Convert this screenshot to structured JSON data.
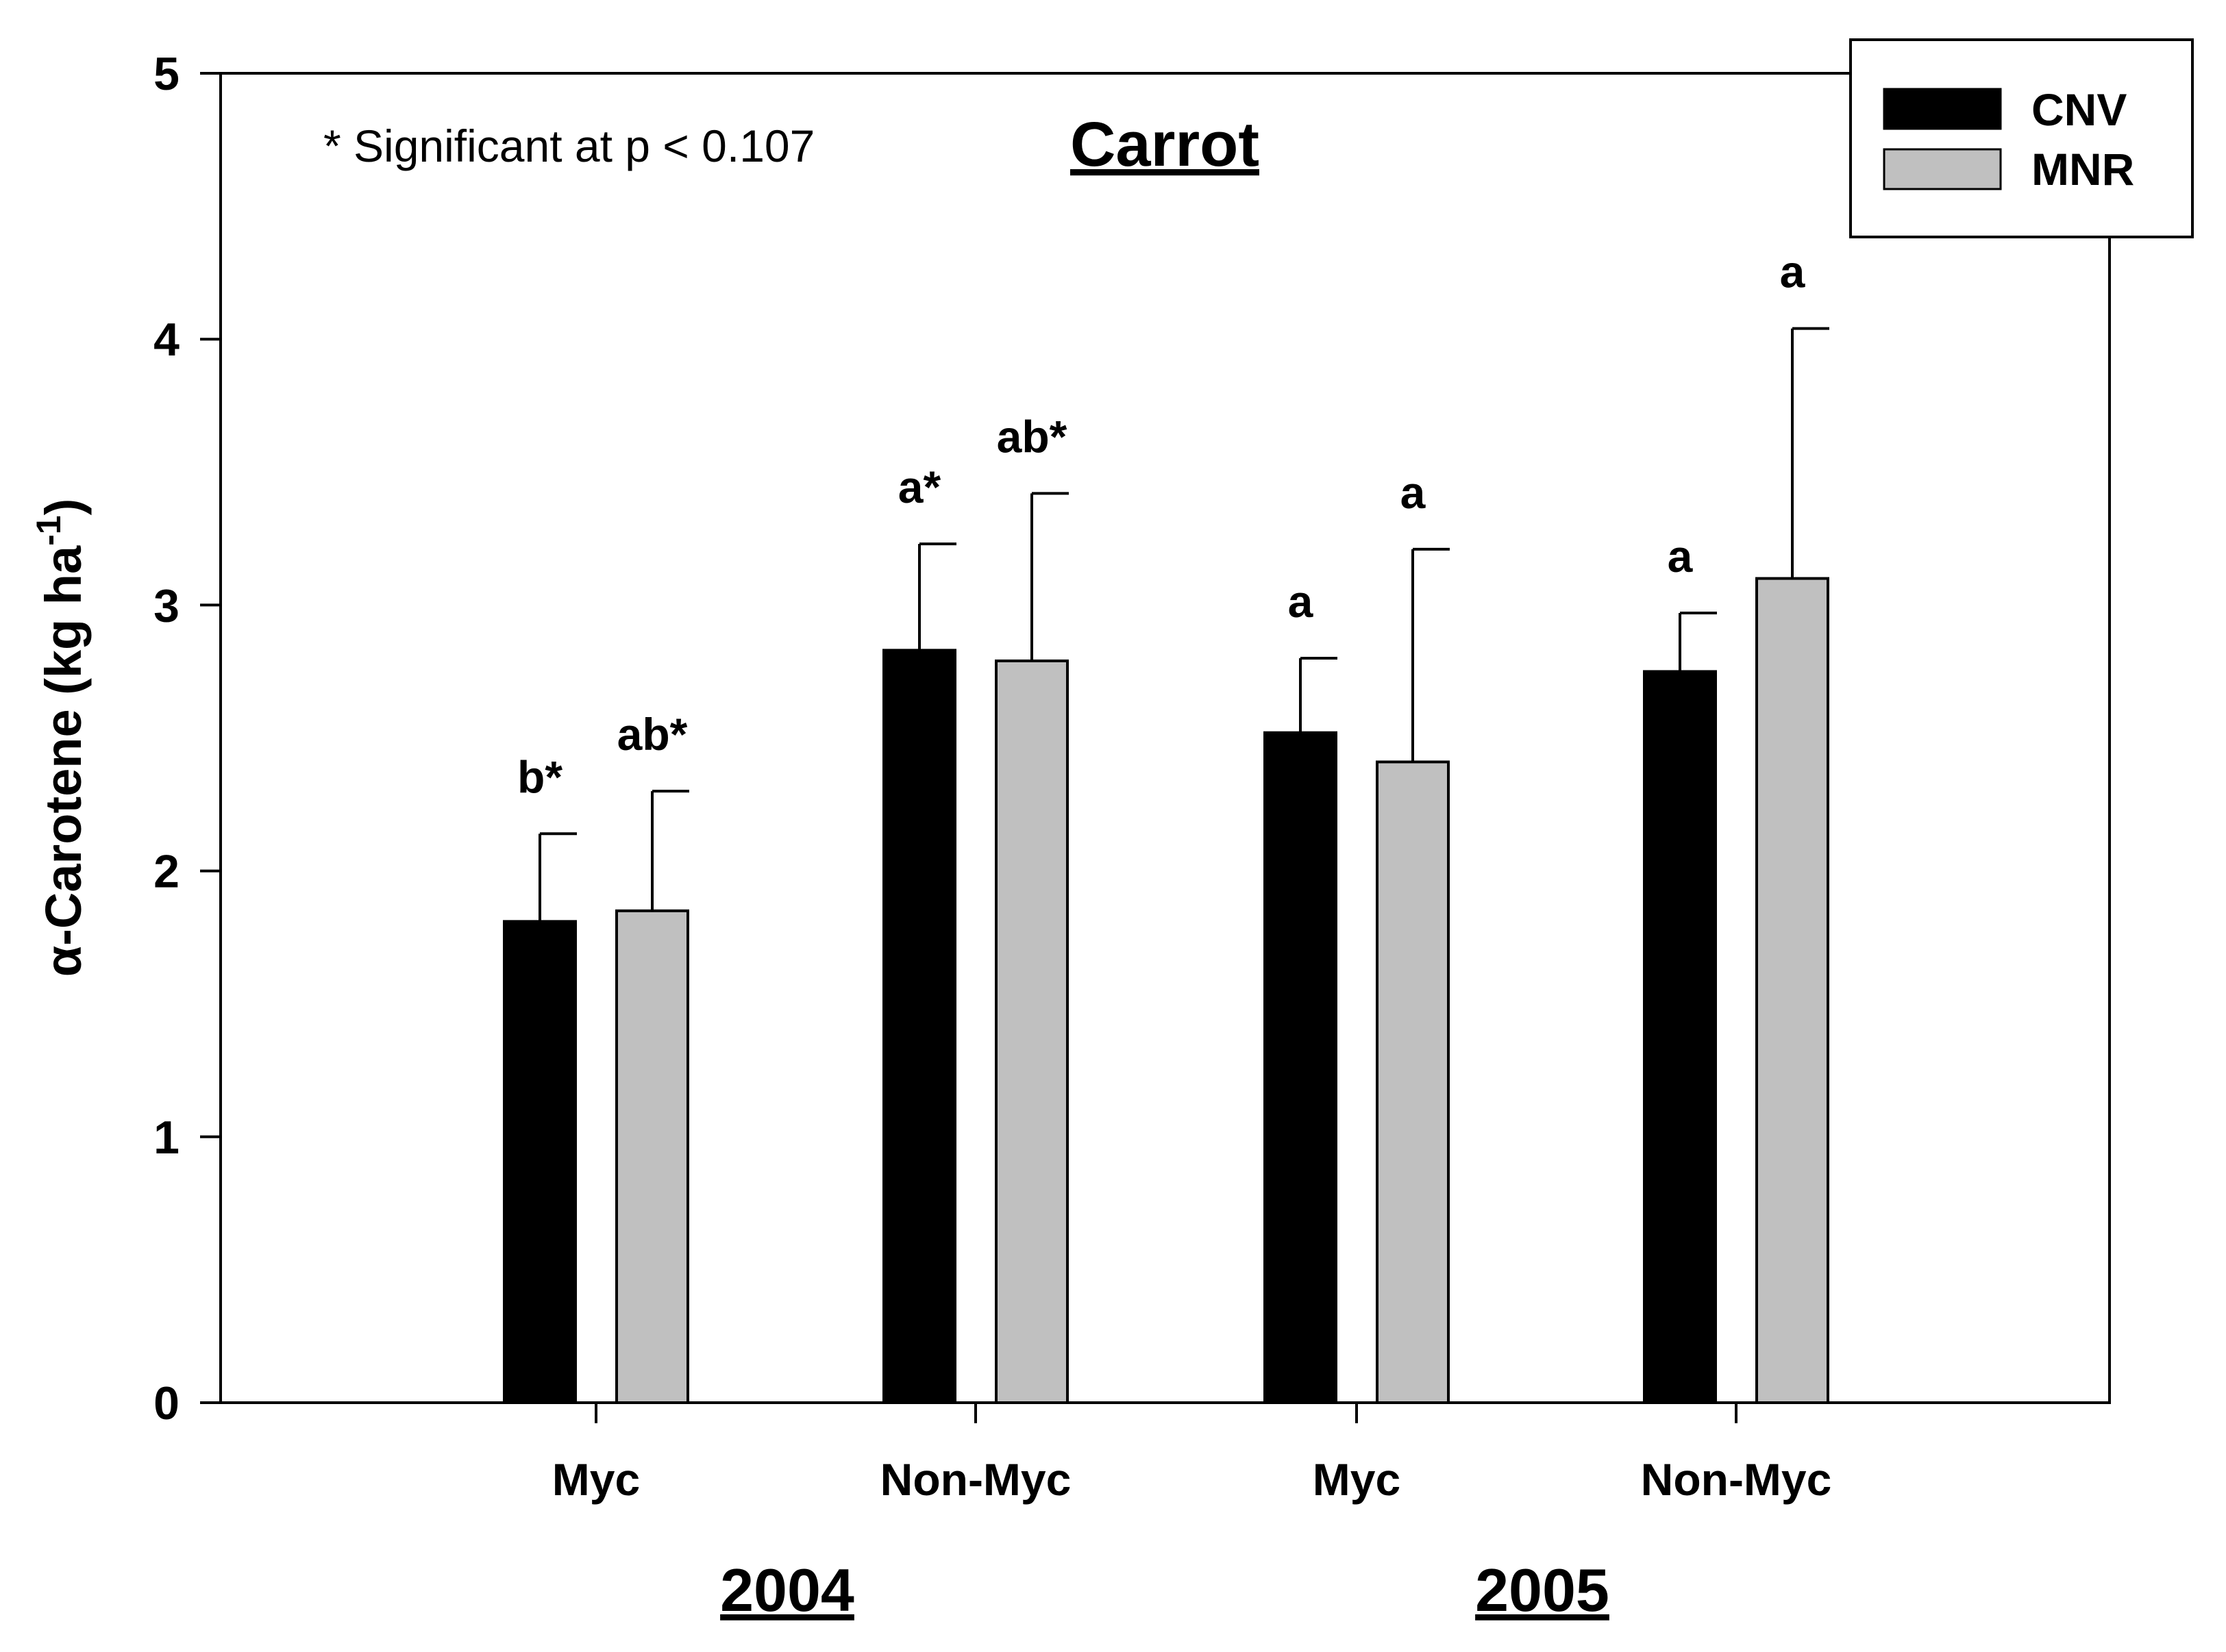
{
  "chart_data": {
    "type": "bar",
    "title": "Carrot",
    "ylabel_main": "α-Carotene (kg ha",
    "ylabel_sup": "-1",
    "ylabel_close": ")",
    "xlabel": "",
    "ylim": [
      0,
      5
    ],
    "yticks": [
      "0",
      "1",
      "2",
      "3",
      "4",
      "5"
    ],
    "categories": [
      "Myc",
      "Non-Myc",
      "Myc",
      "Non-Myc"
    ],
    "year_groups": [
      {
        "label": "2004",
        "categories": [
          0,
          1
        ]
      },
      {
        "label": "2005",
        "categories": [
          2,
          3
        ]
      }
    ],
    "series": [
      {
        "name": "CNV",
        "color": "#000000",
        "values": [
          1.81,
          2.83,
          2.52,
          2.75
        ],
        "errors": [
          0.33,
          0.4,
          0.28,
          0.22
        ],
        "labels": [
          "b*",
          "a*",
          "a",
          "a"
        ]
      },
      {
        "name": "MNR",
        "color": "#c0c0c0",
        "values": [
          1.85,
          2.79,
          2.41,
          3.1
        ],
        "errors": [
          0.45,
          0.63,
          0.8,
          0.94
        ],
        "labels": [
          "ab*",
          "ab*",
          "a",
          "a"
        ]
      }
    ],
    "annotation": "* Significant at p < 0.107",
    "legend_position": "top-right"
  }
}
